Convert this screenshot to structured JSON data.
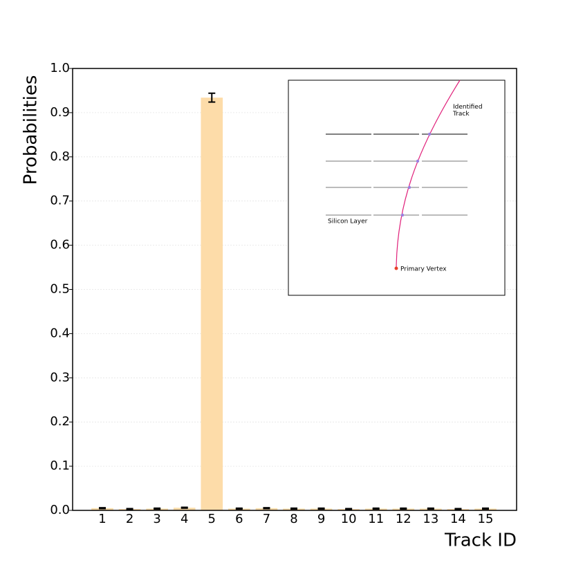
{
  "chart_data": {
    "type": "bar",
    "x_label": "Track ID",
    "y_label": "Probabilities",
    "categories": [
      "1",
      "2",
      "3",
      "4",
      "5",
      "6",
      "7",
      "8",
      "9",
      "10",
      "11",
      "12",
      "13",
      "14",
      "15"
    ],
    "values": [
      0.005,
      0.003,
      0.004,
      0.006,
      0.934,
      0.004,
      0.005,
      0.004,
      0.004,
      0.003,
      0.004,
      0.004,
      0.004,
      0.003,
      0.004
    ],
    "errors": [
      0.001,
      0.001,
      0.001,
      0.001,
      0.01,
      0.001,
      0.001,
      0.001,
      0.001,
      0.001,
      0.001,
      0.001,
      0.001,
      0.001,
      0.001
    ],
    "color": "#fddca9",
    "error_color": "#000000",
    "ylim": [
      0,
      1
    ],
    "yticks": [
      {
        "value": 0,
        "label": "0.0"
      },
      0.1,
      0.2,
      0.3,
      0.4,
      0.5,
      0.6,
      0.7,
      0.8,
      0.9,
      {
        "value": 1,
        "label": "1.0"
      }
    ],
    "grid": true,
    "annotations": [
      "Identified Track",
      "Silicon Layer",
      "Primary Vertex"
    ]
  }
}
